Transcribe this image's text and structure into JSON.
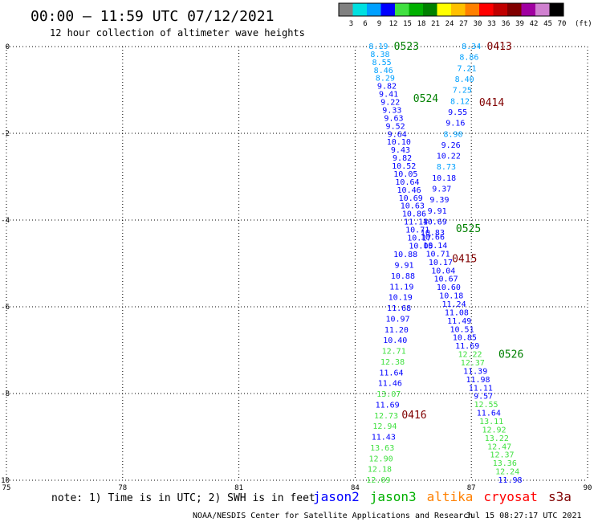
{
  "header": {
    "title": "00:00 – 11:59 UTC 07/12/2021",
    "subtitle": "12 hour collection of altimeter wave heights"
  },
  "colorbar": {
    "ticks": [
      "3",
      "6",
      "9",
      "12",
      "15",
      "18",
      "21",
      "24",
      "27",
      "30",
      "33",
      "36",
      "39",
      "42",
      "45",
      "70"
    ],
    "unit": "(ft)",
    "colors": [
      "#808080",
      "#00e0e0",
      "#00a0ff",
      "#0000ff",
      "#40e040",
      "#00b000",
      "#008000",
      "#ffff00",
      "#ffc000",
      "#ff8000",
      "#ff0000",
      "#c00000",
      "#800000",
      "#a000a0",
      "#d080d0",
      "#000000"
    ]
  },
  "footer": {
    "note": "note:  1) Time is in UTC; 2) SWH is in feet",
    "satellites": [
      {
        "name": "jason2",
        "color": "#0000ff"
      },
      {
        "name": "jason3",
        "color": "#00b000"
      },
      {
        "name": "altika",
        "color": "#ff8000"
      },
      {
        "name": "cryosat",
        "color": "#ff0000"
      },
      {
        "name": "s3a",
        "color": "#800000"
      }
    ],
    "credit": "NOAA/NESDIS Center for Satellite Applications and Research",
    "timestamp": "Jul 15 08:27:17 UTC 2021"
  },
  "chart_data": {
    "type": "scatter",
    "xlim": [
      75,
      90
    ],
    "ylim": [
      -10,
      0
    ],
    "x_ticks": [
      "75",
      "78",
      "81",
      "84",
      "87",
      "90"
    ],
    "y_ticks": [
      "0",
      "-2",
      "-4",
      "-6",
      "-8",
      "-10"
    ],
    "grid": "dotted",
    "tracks": [
      {
        "label": "0523",
        "label_color": "#008000",
        "label_pos": [
          85.0,
          0.0
        ],
        "x0": 84.6,
        "y0": 0.0,
        "x1": 85.7,
        "y1": -4.6,
        "values": [
          8.19,
          8.38,
          8.55,
          8.46,
          8.29,
          9.82,
          9.41,
          9.22,
          9.33,
          9.63,
          9.52,
          9.64,
          10.1,
          9.43,
          9.82,
          10.52,
          10.05,
          10.64,
          10.46,
          10.69,
          10.63,
          10.86,
          11.14,
          10.71,
          10.17,
          10.05
        ]
      },
      {
        "label": "0524",
        "label_color": "#008000",
        "label_pos": [
          85.5,
          -1.2
        ],
        "x0": 85.3,
        "y0": -4.8,
        "x1": 84.6,
        "y1": -10.0,
        "values": [
          10.88,
          9.91,
          10.88,
          11.19,
          10.19,
          11.68,
          10.97,
          11.2,
          10.4,
          12.71,
          12.38,
          11.64,
          11.46,
          13.07,
          11.69,
          12.73,
          12.94,
          11.43,
          13.63,
          12.9,
          12.18,
          12.09
        ]
      },
      {
        "label": "0413",
        "label_color": "#800000",
        "label_pos": [
          87.4,
          0.0
        ],
        "x0": 87.0,
        "y0": 0.0,
        "x1": 86.0,
        "y1": -4.3,
        "values": [
          8.34,
          8.86,
          7.21,
          8.4,
          7.25,
          8.12,
          9.55,
          9.16,
          8.9,
          9.26,
          10.22,
          8.73,
          10.18,
          9.37,
          9.39,
          9.91,
          10.69,
          10.83
        ]
      },
      {
        "label": "0414",
        "label_color": "#800000",
        "label_pos": [
          87.2,
          -1.3
        ],
        "x0": 86.0,
        "y0": -4.4,
        "x1": 88.0,
        "y1": -10.0,
        "values": [
          10.66,
          10.14,
          10.71,
          10.17,
          10.04,
          10.67,
          10.6,
          10.18,
          11.24,
          11.08,
          11.49,
          10.51,
          10.85,
          11.69,
          12.22,
          12.37,
          11.39,
          11.98,
          11.11,
          9.57,
          12.55,
          11.64,
          13.11,
          12.92,
          13.22,
          12.47,
          12.37,
          13.36,
          12.24,
          11.98
        ]
      },
      {
        "label": "0525",
        "label_color": "#008000",
        "label_pos": [
          86.6,
          -4.2
        ],
        "values": []
      },
      {
        "label": "0415",
        "label_color": "#800000",
        "label_pos": [
          86.5,
          -4.9
        ],
        "values": []
      },
      {
        "label": "0526",
        "label_color": "#008000",
        "label_pos": [
          87.7,
          -7.1
        ],
        "values": []
      },
      {
        "label": "0416",
        "label_color": "#800000",
        "label_pos": [
          85.2,
          -8.5
        ],
        "values": []
      }
    ]
  }
}
